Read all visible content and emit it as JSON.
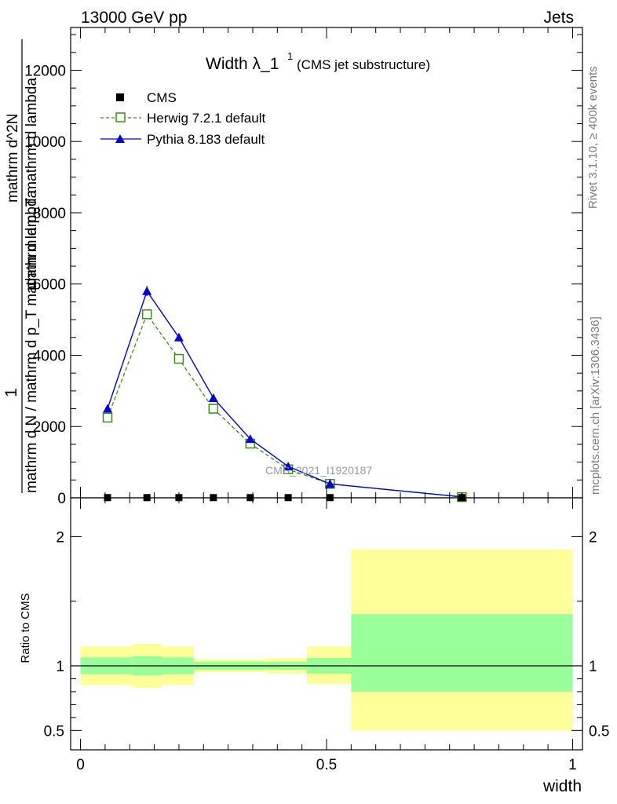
{
  "header": {
    "left": "13000 GeV pp",
    "right": "Jets"
  },
  "side_labels": {
    "rivet": "Rivet 3.1.10, ≥ 400k events",
    "mcplots": "mcplots.cern.ch [arXiv:1306.3436]"
  },
  "chart_data": [
    {
      "type": "line",
      "title_main": "Width λ_1",
      "title_sup": "1",
      "title_sub": "(CMS jet substructure)",
      "ylabel_numerator": "1",
      "ylabel_denominator": "mathrm d N / mathrm d p_T mathrm d lambda",
      "ylabel_left_lines": [
        "mathrm d^2N",
        "mathrm d p_T mathrm d lambda"
      ],
      "xlabel": "width",
      "watermark": "CMS_2021_I1920187",
      "xlim": [
        -0.02,
        1.02
      ],
      "ylim": [
        0,
        13200
      ],
      "yticks": [
        0,
        2000,
        4000,
        6000,
        8000,
        10000,
        12000
      ],
      "ytick_labels": [
        "0",
        "2000",
        "4000",
        "6000",
        "8000",
        "10000",
        "12000"
      ],
      "series": [
        {
          "name": "CMS",
          "style": "data",
          "color": "#000000",
          "x": [
            0.055,
            0.135,
            0.2,
            0.27,
            0.345,
            0.422,
            0.507,
            0.775
          ],
          "y": [
            5,
            5,
            5,
            5,
            5,
            5,
            5,
            5
          ]
        },
        {
          "name": "Herwig 7.2.1 default",
          "style": "dashed-open-square",
          "color": "#3a8f13",
          "x": [
            0.055,
            0.135,
            0.2,
            0.27,
            0.345,
            0.422,
            0.507,
            0.775
          ],
          "y": [
            2250,
            5150,
            3900,
            2500,
            1520,
            800,
            390,
            20
          ]
        },
        {
          "name": "Pythia 8.183 default",
          "style": "solid-filled-triangle",
          "color": "#0000d8",
          "x": [
            0.055,
            0.135,
            0.2,
            0.27,
            0.345,
            0.422,
            0.507,
            0.775
          ],
          "y": [
            2500,
            5800,
            4500,
            2800,
            1650,
            880,
            390,
            25
          ],
          "yerr": [
            60,
            140,
            110,
            70,
            45,
            30,
            20,
            5
          ]
        }
      ]
    },
    {
      "type": "area",
      "ylabel": "Ratio to CMS",
      "xlim": [
        -0.02,
        1.02
      ],
      "ylim": [
        0.35,
        2.3
      ],
      "yticks": [
        0.5,
        1,
        2
      ],
      "ytick_labels": [
        "0.5",
        "1",
        "2"
      ],
      "xticks": [
        0,
        0.5,
        1
      ],
      "xtick_labels": [
        "0",
        "0.5",
        "1"
      ],
      "colors": {
        "outer": "#ffff99",
        "inner": "#99ff99",
        "line": "#000000"
      },
      "bands": [
        {
          "x0": 0.0,
          "x1": 0.105,
          "inner": [
            0.935,
            1.065
          ],
          "outer": [
            0.85,
            1.15
          ]
        },
        {
          "x0": 0.105,
          "x1": 0.165,
          "inner": [
            0.925,
            1.075
          ],
          "outer": [
            0.83,
            1.17
          ]
        },
        {
          "x0": 0.165,
          "x1": 0.23,
          "inner": [
            0.935,
            1.065
          ],
          "outer": [
            0.85,
            1.15
          ]
        },
        {
          "x0": 0.23,
          "x1": 0.38,
          "inner": [
            0.97,
            1.03
          ],
          "outer": [
            0.95,
            1.05
          ]
        },
        {
          "x0": 0.38,
          "x1": 0.46,
          "inner": [
            0.97,
            1.03
          ],
          "outer": [
            0.94,
            1.06
          ]
        },
        {
          "x0": 0.46,
          "x1": 0.55,
          "inner": [
            0.94,
            1.06
          ],
          "outer": [
            0.86,
            1.15
          ]
        },
        {
          "x0": 0.55,
          "x1": 1.0,
          "inner": [
            0.8,
            1.4
          ],
          "outer": [
            0.5,
            1.9
          ]
        }
      ]
    }
  ]
}
